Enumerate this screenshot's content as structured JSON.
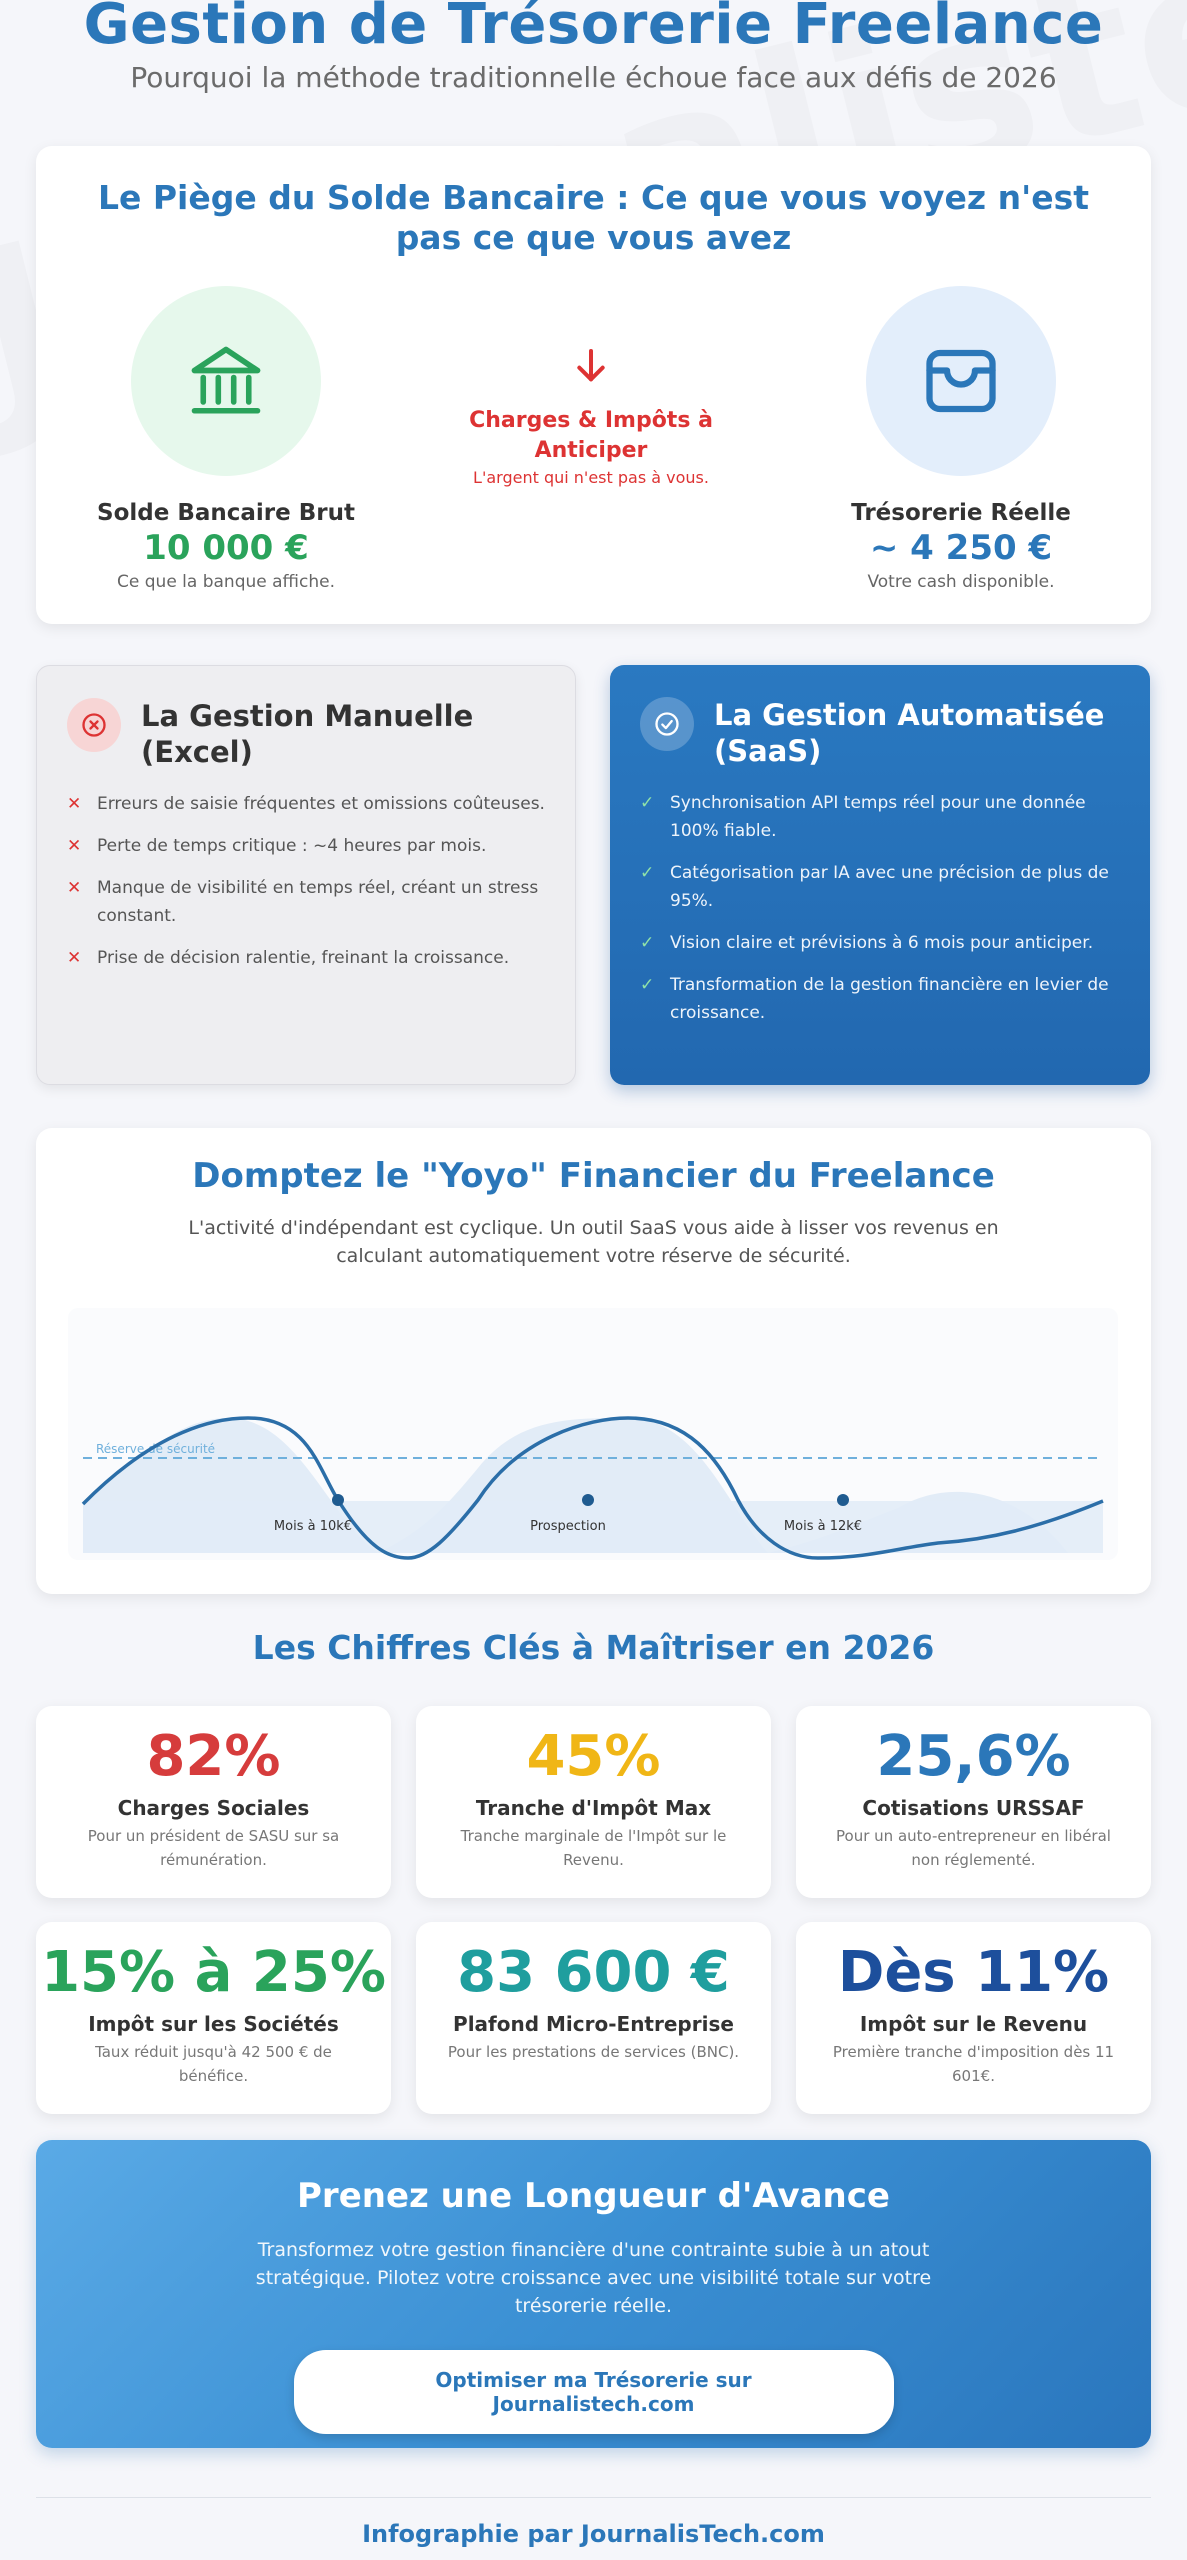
{
  "header": {
    "title": "Gestion de Trésorerie Freelance",
    "subtitle": "Pourquoi la méthode traditionnelle échoue face aux défis de 2026"
  },
  "watermark": "Journalistech",
  "balance_trap": {
    "title": "Le Piège du Solde Bancaire : Ce que vous voyez n'est pas ce que vous avez",
    "left": {
      "icon": "bank-icon",
      "label": "Solde Bancaire Brut",
      "value": "10 000 €",
      "note": "Ce que la banque affiche."
    },
    "middle": {
      "icon": "arrow-down-icon",
      "label": "Charges & Impôts à Anticiper",
      "note": "L'argent qui n'est pas à vous."
    },
    "right": {
      "icon": "wallet-icon",
      "label": "Trésorerie Réelle",
      "value": "~ 4 250 €",
      "note": "Votre cash disponible."
    }
  },
  "comparison": {
    "manual": {
      "icon": "x-circle-icon",
      "title": "La Gestion Manuelle (Excel)",
      "items": [
        "Erreurs de saisie fréquentes et omissions coûteuses.",
        "Perte de temps critique : ~4 heures par mois.",
        "Manque de visibilité en temps réel, créant un stress constant.",
        "Prise de décision ralentie, freinant la croissance."
      ]
    },
    "automated": {
      "icon": "check-circle-icon",
      "title": "La Gestion Automatisée (SaaS)",
      "items": [
        "Synchronisation API temps réel pour une donnée 100% fiable.",
        "Catégorisation par IA avec une précision de plus de 95%.",
        "Vision claire et prévisions à 6 mois pour anticiper.",
        "Transformation de la gestion financière en levier de croissance."
      ]
    }
  },
  "yoyo": {
    "title": "Domptez le \"Yoyo\" Financier du Freelance",
    "description": "L'activité d'indépendant est cyclique. Un outil SaaS vous aide à lisser vos revenus en calculant automatiquement votre réserve de sécurité.",
    "reserve_label": "Réserve de sécurité",
    "point_labels": [
      "Mois à 10k€",
      "Prospection",
      "Mois à 12k€"
    ],
    "colors": {
      "line": "#2b6ea8",
      "reserve": "#6fb0dc"
    }
  },
  "stats": {
    "title": "Les Chiffres Clés à Maîtriser en 2026",
    "items": [
      {
        "value": "82%",
        "label": "Charges Sociales",
        "desc": "Pour un président de SASU sur sa rémunération.",
        "color": "#d63c3c"
      },
      {
        "value": "45%",
        "label": "Tranche d'Impôt Max",
        "desc": "Tranche marginale de l'Impôt sur le Revenu.",
        "color": "#f0b616"
      },
      {
        "value": "25,6%",
        "label": "Cotisations URSSAF",
        "desc": "Pour un auto-entrepreneur en libéral non réglementé.",
        "color": "#2b77b9"
      },
      {
        "value": "15% à 25%",
        "label": "Impôt sur les Sociétés",
        "desc": "Taux réduit jusqu'à 42 500 € de bénéfice.",
        "color": "#2aa35b"
      },
      {
        "value": "83 600 €",
        "label": "Plafond Micro-Entreprise",
        "desc": "Pour les prestations de services (BNC).",
        "color": "#1f9e9e"
      },
      {
        "value": "Dès 11%",
        "label": "Impôt sur le Revenu",
        "desc": "Première tranche d'imposition dès 11 601€.",
        "color": "#1d4f9c"
      }
    ]
  },
  "cta": {
    "title": "Prenez une Longueur d'Avance",
    "description": "Transformez votre gestion financière d'une contrainte subie à un atout stratégique. Pilotez votre croissance avec une visibilité totale sur votre trésorerie réelle.",
    "button": "Optimiser ma Trésorerie sur Journalistech.com"
  },
  "footer": "Infographie par JournalisTech.com"
}
